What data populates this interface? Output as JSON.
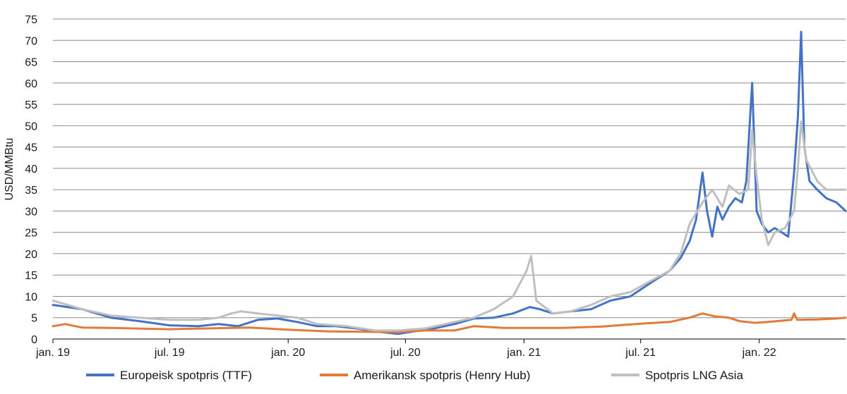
{
  "chart_data": {
    "type": "line",
    "title": "",
    "xlabel": "",
    "ylabel": "USD/MMBtu",
    "ylim": [
      0,
      75
    ],
    "yticks": [
      0,
      5,
      10,
      15,
      20,
      25,
      30,
      35,
      40,
      45,
      50,
      55,
      60,
      65,
      70,
      75
    ],
    "xrange": [
      "2019-01-01",
      "2022-05-15"
    ],
    "xticks": [
      {
        "date": "2019-01-01",
        "label": "jan. 19"
      },
      {
        "date": "2019-07-01",
        "label": "jul. 19"
      },
      {
        "date": "2020-01-01",
        "label": "jan. 20"
      },
      {
        "date": "2020-07-01",
        "label": "jul. 20"
      },
      {
        "date": "2021-01-01",
        "label": "jan. 21"
      },
      {
        "date": "2021-07-01",
        "label": "jul. 21"
      },
      {
        "date": "2022-01-01",
        "label": "jan. 22"
      }
    ],
    "grid": true,
    "legend_position": "bottom",
    "series": [
      {
        "name": "Europeisk spotpris (TTF)",
        "color": "#4472c4",
        "points": [
          [
            "2019-01-01",
            8.0
          ],
          [
            "2019-02-15",
            7.0
          ],
          [
            "2019-04-01",
            5.0
          ],
          [
            "2019-05-15",
            4.2
          ],
          [
            "2019-07-01",
            3.2
          ],
          [
            "2019-08-15",
            3.0
          ],
          [
            "2019-09-15",
            3.5
          ],
          [
            "2019-10-15",
            3.0
          ],
          [
            "2019-11-15",
            4.5
          ],
          [
            "2019-12-15",
            4.8
          ],
          [
            "2020-01-15",
            4.0
          ],
          [
            "2020-02-15",
            3.0
          ],
          [
            "2020-03-15",
            3.0
          ],
          [
            "2020-04-15",
            2.5
          ],
          [
            "2020-05-15",
            1.8
          ],
          [
            "2020-06-01",
            1.5
          ],
          [
            "2020-06-20",
            1.2
          ],
          [
            "2020-07-15",
            1.8
          ],
          [
            "2020-08-15",
            2.5
          ],
          [
            "2020-09-15",
            3.5
          ],
          [
            "2020-10-15",
            4.8
          ],
          [
            "2020-11-15",
            5.0
          ],
          [
            "2020-12-15",
            6.0
          ],
          [
            "2021-01-10",
            7.5
          ],
          [
            "2021-01-25",
            7.0
          ],
          [
            "2021-02-15",
            6.0
          ],
          [
            "2021-03-15",
            6.5
          ],
          [
            "2021-04-15",
            7.0
          ],
          [
            "2021-05-15",
            9.0
          ],
          [
            "2021-06-15",
            10.0
          ],
          [
            "2021-07-15",
            13.0
          ],
          [
            "2021-08-15",
            16.0
          ],
          [
            "2021-09-01",
            19.0
          ],
          [
            "2021-09-15",
            23.0
          ],
          [
            "2021-09-25",
            28.0
          ],
          [
            "2021-10-05",
            39.0
          ],
          [
            "2021-10-12",
            30.0
          ],
          [
            "2021-10-20",
            24.0
          ],
          [
            "2021-10-28",
            31.0
          ],
          [
            "2021-11-05",
            28.0
          ],
          [
            "2021-11-15",
            31.0
          ],
          [
            "2021-11-25",
            33.0
          ],
          [
            "2021-12-05",
            32.0
          ],
          [
            "2021-12-12",
            37.0
          ],
          [
            "2021-12-21",
            60.0
          ],
          [
            "2021-12-28",
            30.0
          ],
          [
            "2022-01-05",
            27.0
          ],
          [
            "2022-01-15",
            25.0
          ],
          [
            "2022-01-25",
            26.0
          ],
          [
            "2022-02-05",
            25.0
          ],
          [
            "2022-02-15",
            24.0
          ],
          [
            "2022-02-24",
            39.0
          ],
          [
            "2022-03-02",
            52.0
          ],
          [
            "2022-03-07",
            72.0
          ],
          [
            "2022-03-12",
            45.0
          ],
          [
            "2022-03-20",
            37.0
          ],
          [
            "2022-04-01",
            35.0
          ],
          [
            "2022-04-15",
            33.0
          ],
          [
            "2022-05-01",
            32.0
          ],
          [
            "2022-05-15",
            30.0
          ]
        ]
      },
      {
        "name": "Amerikansk spotpris (Henry Hub)",
        "color": "#e07b39",
        "points": [
          [
            "2019-01-01",
            3.0
          ],
          [
            "2019-01-20",
            3.5
          ],
          [
            "2019-02-15",
            2.7
          ],
          [
            "2019-04-01",
            2.6
          ],
          [
            "2019-07-01",
            2.3
          ],
          [
            "2019-09-01",
            2.5
          ],
          [
            "2019-11-01",
            2.7
          ],
          [
            "2020-01-01",
            2.2
          ],
          [
            "2020-03-01",
            1.8
          ],
          [
            "2020-05-01",
            1.7
          ],
          [
            "2020-06-20",
            1.6
          ],
          [
            "2020-08-01",
            2.0
          ],
          [
            "2020-09-15",
            2.0
          ],
          [
            "2020-10-15",
            3.0
          ],
          [
            "2020-12-01",
            2.6
          ],
          [
            "2021-01-01",
            2.6
          ],
          [
            "2021-03-01",
            2.6
          ],
          [
            "2021-05-01",
            2.9
          ],
          [
            "2021-07-01",
            3.6
          ],
          [
            "2021-08-15",
            4.0
          ],
          [
            "2021-09-15",
            5.0
          ],
          [
            "2021-10-05",
            6.0
          ],
          [
            "2021-10-25",
            5.3
          ],
          [
            "2021-11-15",
            5.0
          ],
          [
            "2021-12-01",
            4.2
          ],
          [
            "2021-12-25",
            3.8
          ],
          [
            "2022-01-15",
            4.0
          ],
          [
            "2022-02-05",
            4.3
          ],
          [
            "2022-02-20",
            4.5
          ],
          [
            "2022-02-24",
            6.0
          ],
          [
            "2022-03-01",
            4.5
          ],
          [
            "2022-04-01",
            4.6
          ],
          [
            "2022-05-01",
            4.8
          ],
          [
            "2022-05-15",
            5.0
          ]
        ]
      },
      {
        "name": "Spotpris LNG Asia",
        "color": "#bfbfbf",
        "points": [
          [
            "2019-01-01",
            9.0
          ],
          [
            "2019-02-15",
            7.0
          ],
          [
            "2019-04-01",
            5.5
          ],
          [
            "2019-05-15",
            5.0
          ],
          [
            "2019-07-01",
            4.5
          ],
          [
            "2019-08-15",
            4.5
          ],
          [
            "2019-09-15",
            5.0
          ],
          [
            "2019-10-05",
            6.0
          ],
          [
            "2019-10-20",
            6.5
          ],
          [
            "2019-11-15",
            6.0
          ],
          [
            "2019-12-15",
            5.5
          ],
          [
            "2020-01-15",
            5.0
          ],
          [
            "2020-02-15",
            3.5
          ],
          [
            "2020-04-01",
            3.0
          ],
          [
            "2020-05-15",
            2.0
          ],
          [
            "2020-06-20",
            2.0
          ],
          [
            "2020-08-01",
            2.5
          ],
          [
            "2020-09-01",
            3.5
          ],
          [
            "2020-10-15",
            5.0
          ],
          [
            "2020-11-15",
            7.0
          ],
          [
            "2020-12-15",
            10.0
          ],
          [
            "2021-01-05",
            16.0
          ],
          [
            "2021-01-12",
            19.5
          ],
          [
            "2021-01-20",
            9.0
          ],
          [
            "2021-02-15",
            6.0
          ],
          [
            "2021-03-15",
            6.5
          ],
          [
            "2021-04-15",
            8.0
          ],
          [
            "2021-05-15",
            10.0
          ],
          [
            "2021-06-15",
            11.0
          ],
          [
            "2021-07-15",
            13.5
          ],
          [
            "2021-08-15",
            16.0
          ],
          [
            "2021-09-01",
            20.0
          ],
          [
            "2021-09-15",
            27.0
          ],
          [
            "2021-10-05",
            32.0
          ],
          [
            "2021-10-20",
            35.0
          ],
          [
            "2021-11-05",
            31.0
          ],
          [
            "2021-11-15",
            36.0
          ],
          [
            "2021-12-01",
            34.0
          ],
          [
            "2021-12-15",
            35.0
          ],
          [
            "2021-12-21",
            49.0
          ],
          [
            "2021-12-28",
            38.0
          ],
          [
            "2022-01-05",
            28.0
          ],
          [
            "2022-01-15",
            22.0
          ],
          [
            "2022-01-25",
            25.0
          ],
          [
            "2022-02-10",
            26.0
          ],
          [
            "2022-02-24",
            30.0
          ],
          [
            "2022-03-02",
            40.0
          ],
          [
            "2022-03-07",
            51.0
          ],
          [
            "2022-03-15",
            42.0
          ],
          [
            "2022-04-01",
            37.0
          ],
          [
            "2022-04-15",
            35.0
          ],
          [
            "2022-05-15",
            35.0
          ]
        ]
      }
    ]
  }
}
